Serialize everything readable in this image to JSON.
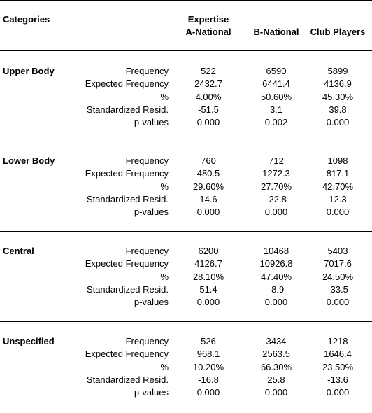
{
  "header": {
    "categories_label": "Categories",
    "group_label": "Expertise",
    "columns": [
      "A-National",
      "B-National",
      "Club Players"
    ]
  },
  "row_labels": [
    "Frequency",
    "Expected Frequency",
    "%",
    "Standardized Resid.",
    "p-values"
  ],
  "sections": [
    {
      "name": "Upper Body",
      "rows": [
        [
          "522",
          "6590",
          "5899"
        ],
        [
          "2432.7",
          "6441.4",
          "4136.9"
        ],
        [
          "4.00%",
          "50.60%",
          "45.30%"
        ],
        [
          "-51.5",
          "3.1",
          "39.8"
        ],
        [
          "0.000",
          "0.002",
          "0.000"
        ]
      ]
    },
    {
      "name": "Lower Body",
      "rows": [
        [
          "760",
          "712",
          "1098"
        ],
        [
          "480.5",
          "1272.3",
          "817.1"
        ],
        [
          "29.60%",
          "27.70%",
          "42.70%"
        ],
        [
          "14.6",
          "-22.8",
          "12.3"
        ],
        [
          "0.000",
          "0.000",
          "0.000"
        ]
      ]
    },
    {
      "name": "Central",
      "rows": [
        [
          "6200",
          "10468",
          "5403"
        ],
        [
          "4126.7",
          "10926.8",
          "7017.6"
        ],
        [
          "28.10%",
          "47.40%",
          "24.50%"
        ],
        [
          "51.4",
          "-8.9",
          "-33.5"
        ],
        [
          "0.000",
          "0.000",
          "0.000"
        ]
      ]
    },
    {
      "name": "Unspecified",
      "rows": [
        [
          "526",
          "3434",
          "1218"
        ],
        [
          "968.1",
          "2563.5",
          "1646.4"
        ],
        [
          "10.20%",
          "66.30%",
          "23.50%"
        ],
        [
          "-16.8",
          "25.8",
          "-13.6"
        ],
        [
          "0.000",
          "0.000",
          "0.000"
        ]
      ]
    }
  ]
}
